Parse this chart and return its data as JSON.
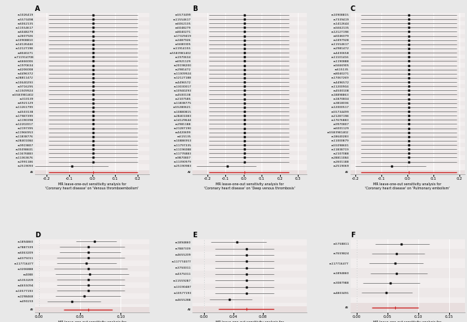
{
  "panels": [
    {
      "label": "A",
      "snps": [
        "rs1026419",
        "rs5573498",
        "rs6062135",
        "rs11554617",
        "rs6048279",
        "rs2607926",
        "rs10908810",
        "rs14126444",
        "rs12127198",
        "rs8040271",
        "rs711914708",
        "rs6666006",
        "rs1970634",
        "rs4206008",
        "rs4496372",
        "rs28811472",
        "rs10640293",
        "rs9716295",
        "rs11509924",
        "rs5583981402",
        "rs313139",
        "rs6921129",
        "rs11261799",
        "rs4503138",
        "rs17987399",
        "rs1190398",
        "rs12202017",
        "rs2197395",
        "rs11966953",
        "rs11838776",
        "rs28401084",
        "rs9919807",
        "rs35098601",
        "rs11676883",
        "rs11363676",
        "rs2991186",
        "rs2519093"
      ],
      "estimates": [
        0.005,
        0.005,
        0.005,
        0.005,
        0.005,
        0.005,
        0.005,
        0.005,
        0.005,
        0.005,
        0.005,
        0.005,
        0.005,
        0.005,
        0.005,
        0.005,
        0.005,
        0.005,
        0.005,
        0.005,
        0.005,
        0.005,
        0.005,
        0.005,
        0.005,
        0.005,
        0.005,
        0.005,
        0.005,
        0.005,
        0.005,
        0.005,
        0.005,
        0.005,
        0.005,
        0.005,
        -0.09
      ],
      "ci_lower": [
        -0.19,
        -0.19,
        -0.19,
        -0.19,
        -0.19,
        -0.19,
        -0.19,
        -0.19,
        -0.19,
        -0.19,
        -0.19,
        -0.19,
        -0.19,
        -0.19,
        -0.19,
        -0.19,
        -0.19,
        -0.19,
        -0.19,
        -0.19,
        -0.19,
        -0.19,
        -0.19,
        -0.19,
        -0.19,
        -0.19,
        -0.19,
        -0.19,
        -0.19,
        -0.19,
        -0.19,
        -0.19,
        -0.19,
        -0.19,
        -0.19,
        -0.19,
        -0.25
      ],
      "ci_upper": [
        0.2,
        0.2,
        0.2,
        0.2,
        0.2,
        0.2,
        0.2,
        0.2,
        0.2,
        0.2,
        0.2,
        0.2,
        0.2,
        0.2,
        0.2,
        0.2,
        0.2,
        0.2,
        0.2,
        0.2,
        0.2,
        0.2,
        0.2,
        0.2,
        0.2,
        0.2,
        0.2,
        0.2,
        0.2,
        0.2,
        0.2,
        0.2,
        0.2,
        0.2,
        0.2,
        0.2,
        0.07
      ],
      "all_estimate": 0.005,
      "all_ci_lower": -0.19,
      "all_ci_upper": 0.2,
      "xlim": [
        -0.25,
        0.25
      ],
      "xticks": [
        -0.2,
        -0.1,
        0.0,
        0.1,
        0.2
      ],
      "xticklabels": [
        "-0.2",
        "-0.1",
        "0.0",
        "0.1",
        "0.2"
      ],
      "xlabel": "MR leave-one-out sensitivity analysis for\n'Coronary heart disease' on 'Venous thromboembolism'"
    },
    {
      "label": "B",
      "snps": [
        "rs5573499",
        "rs11554617",
        "rs6062135",
        "rs6048279",
        "rs8040271",
        "rs17329419",
        "rs2487926",
        "rs5680305",
        "rs11914155",
        "rs5583981402",
        "rs1970634",
        "rs6921129",
        "rs20198200",
        "rs2981472",
        "rs11309924",
        "rs12127188",
        "rs4496572",
        "rs13030017",
        "rs10940293",
        "rs4500138",
        "rs2107585",
        "rs11838775",
        "rs55280621",
        "rs10880815",
        "rs28401083",
        "rs14129644",
        "rs2981188",
        "rs21287190",
        "rs4420699",
        "rs615135",
        "rs10886953",
        "rs11797335",
        "rs11196088",
        "rs11776883",
        "rs9870807",
        "rs11390979",
        "rs25190983"
      ],
      "estimates": [
        0.005,
        0.005,
        0.005,
        0.005,
        0.005,
        0.005,
        0.005,
        0.005,
        0.005,
        0.005,
        0.005,
        0.005,
        0.005,
        0.005,
        0.005,
        0.005,
        0.005,
        0.005,
        0.005,
        0.005,
        0.005,
        0.005,
        0.005,
        0.005,
        0.005,
        0.005,
        0.005,
        0.005,
        0.005,
        0.005,
        0.005,
        0.005,
        0.005,
        0.005,
        0.005,
        0.005,
        -0.09
      ],
      "ci_lower": [
        -0.19,
        -0.19,
        -0.19,
        -0.19,
        -0.19,
        -0.19,
        -0.19,
        -0.19,
        -0.19,
        -0.19,
        -0.19,
        -0.19,
        -0.19,
        -0.19,
        -0.19,
        -0.19,
        -0.19,
        -0.19,
        -0.19,
        -0.19,
        -0.19,
        -0.19,
        -0.19,
        -0.19,
        -0.19,
        -0.19,
        -0.19,
        -0.19,
        -0.19,
        -0.19,
        -0.19,
        -0.19,
        -0.19,
        -0.19,
        -0.19,
        -0.19,
        -0.26
      ],
      "ci_upper": [
        0.25,
        0.25,
        0.25,
        0.25,
        0.25,
        0.25,
        0.25,
        0.25,
        0.25,
        0.25,
        0.25,
        0.25,
        0.25,
        0.25,
        0.25,
        0.25,
        0.25,
        0.25,
        0.25,
        0.25,
        0.25,
        0.25,
        0.25,
        0.25,
        0.25,
        0.25,
        0.25,
        0.25,
        0.25,
        0.25,
        0.25,
        0.25,
        0.25,
        0.25,
        0.25,
        0.25,
        0.07
      ],
      "all_estimate": 0.005,
      "all_ci_lower": -0.19,
      "all_ci_upper": 0.25,
      "xlim": [
        -0.28,
        0.35
      ],
      "xticks": [
        -0.2,
        -0.1,
        0.0,
        0.1,
        0.2,
        0.3
      ],
      "xticklabels": [
        "-0.2",
        "-0.1",
        "0.0",
        "0.1",
        "0.2",
        "0.3"
      ],
      "xlabel": "MR leave-one-out sensitivity analysis for\n'Coronary heart disease' on 'Deep venous thrombosis'"
    },
    {
      "label": "C",
      "snps": [
        "rs10908815",
        "rs7339419",
        "rs1412644",
        "rs5662135",
        "rs12127198",
        "rs6046079",
        "rs2497928",
        "rs11554617",
        "rs2981472",
        "rs4430658",
        "rs11101416",
        "rs1190888",
        "rs5666905",
        "rs615135",
        "rs8040271",
        "rs17067269",
        "rs4496572",
        "rs11200904",
        "rs4500108",
        "rs18898863",
        "rs1870834",
        "rs3818036",
        "rs12000517",
        "rs55734499",
        "rs21287198",
        "rs17676883",
        "rs9970807",
        "rs6001129",
        "rs5583981402",
        "rs18640283",
        "rs11000879",
        "rs55098601",
        "rs11838719",
        "rs2107088",
        "rs28811084",
        "rs2601188",
        "rs2519069"
      ],
      "estimates": [
        0.005,
        0.005,
        0.005,
        0.005,
        0.005,
        0.005,
        0.005,
        0.005,
        0.005,
        0.005,
        0.005,
        0.005,
        0.005,
        0.005,
        0.005,
        0.005,
        0.005,
        0.005,
        0.005,
        0.005,
        0.005,
        0.005,
        0.005,
        0.005,
        0.005,
        0.005,
        0.005,
        0.005,
        0.005,
        0.005,
        0.005,
        0.005,
        0.005,
        0.005,
        0.005,
        0.005,
        -0.06
      ],
      "ci_lower": [
        -0.18,
        -0.18,
        -0.18,
        -0.18,
        -0.18,
        -0.18,
        -0.18,
        -0.18,
        -0.18,
        -0.18,
        -0.18,
        -0.18,
        -0.18,
        -0.18,
        -0.18,
        -0.18,
        -0.18,
        -0.18,
        -0.18,
        -0.18,
        -0.18,
        -0.18,
        -0.18,
        -0.18,
        -0.18,
        -0.18,
        -0.18,
        -0.18,
        -0.18,
        -0.18,
        -0.18,
        -0.18,
        -0.18,
        -0.18,
        -0.18,
        -0.18,
        -0.2
      ],
      "ci_upper": [
        0.19,
        0.19,
        0.19,
        0.19,
        0.19,
        0.19,
        0.19,
        0.19,
        0.19,
        0.19,
        0.19,
        0.19,
        0.19,
        0.19,
        0.19,
        0.19,
        0.19,
        0.19,
        0.19,
        0.19,
        0.19,
        0.19,
        0.19,
        0.19,
        0.19,
        0.19,
        0.19,
        0.19,
        0.19,
        0.19,
        0.19,
        0.19,
        0.19,
        0.19,
        0.19,
        0.19,
        0.07
      ],
      "all_estimate": 0.005,
      "all_ci_lower": -0.18,
      "all_ci_upper": 0.19,
      "xlim": [
        -0.22,
        0.22
      ],
      "xticks": [
        -0.2,
        -0.1,
        0.0,
        0.1,
        0.2
      ],
      "xticklabels": [
        "-0.2",
        "-0.1",
        "0.0",
        "0.1",
        "0.2"
      ],
      "xlabel": "MR leave-one-out sensitivity analysis for\n'Coronary heart disease' on 'Pulmonary embolism'"
    },
    {
      "label": "D",
      "snps": [
        "rs1894860",
        "rs7887339",
        "rs6063209",
        "rs4375011",
        "rs117716477",
        "rs3206888",
        "rs4088",
        "rs5353209",
        "rs4655094",
        "rs10577193",
        "rs2298468",
        "rs490233"
      ],
      "estimates": [
        0.068,
        0.06,
        0.06,
        0.06,
        0.058,
        0.06,
        0.062,
        0.06,
        0.06,
        0.06,
        0.055,
        0.04
      ],
      "ci_lower": [
        0.045,
        0.025,
        0.025,
        0.022,
        0.022,
        0.018,
        0.02,
        0.022,
        0.022,
        0.022,
        0.02,
        0.01
      ],
      "ci_upper": [
        0.095,
        0.105,
        0.1,
        0.105,
        0.095,
        0.108,
        0.11,
        0.105,
        0.105,
        0.105,
        0.1,
        0.075
      ],
      "all_estimate": 0.06,
      "all_ci_lower": 0.03,
      "all_ci_upper": 0.09,
      "xlim": [
        -0.005,
        0.135
      ],
      "xticks": [
        0.0,
        0.05,
        0.1
      ],
      "xticklabels": [
        "0.00",
        "0.05",
        "0.10"
      ],
      "xlabel": "MR leave-one-out sensitivity analysis for\n'Venous thromboembolism' on 'Coronary heart disease'"
    },
    {
      "label": "E",
      "snps": [
        "rs1894860",
        "rs7887339",
        "rs4655209",
        "rs117774077",
        "rs3750011",
        "rs4375011",
        "rs11559287",
        "rs13190487",
        "rs10577193",
        "rs4655288"
      ],
      "estimates": [
        0.045,
        0.058,
        0.058,
        0.058,
        0.058,
        0.058,
        0.058,
        0.058,
        0.058,
        0.035
      ],
      "ci_lower": [
        0.01,
        0.015,
        0.015,
        0.015,
        0.015,
        0.015,
        0.015,
        0.015,
        0.015,
        0.008
      ],
      "ci_upper": [
        0.085,
        0.095,
        0.095,
        0.095,
        0.095,
        0.095,
        0.095,
        0.095,
        0.095,
        0.065
      ],
      "all_estimate": 0.058,
      "all_ci_lower": 0.02,
      "all_ci_upper": 0.095,
      "xlim": [
        -0.015,
        0.14
      ],
      "xticks": [
        0.0,
        0.04,
        0.08
      ],
      "xticklabels": [
        "0.00",
        "0.04",
        "0.08"
      ],
      "xlabel": "MR leave-one-out sensitivity analysis for\n'Deep venous thrombosis' on 'Coronary heart disease'"
    },
    {
      "label": "F",
      "snps": [
        "rs5758811",
        "rs7659824",
        "rs117716477",
        "rs1894860",
        "rs3087988",
        "rs4803491"
      ],
      "estimates": [
        0.072,
        0.065,
        0.062,
        0.065,
        0.055,
        0.048
      ],
      "ci_lower": [
        0.03,
        0.025,
        0.02,
        0.022,
        0.01,
        0.008
      ],
      "ci_upper": [
        0.118,
        0.11,
        0.108,
        0.115,
        0.102,
        0.09
      ],
      "all_estimate": 0.062,
      "all_ci_lower": 0.025,
      "all_ci_upper": 0.1,
      "xlim": [
        -0.01,
        0.175
      ],
      "xticks": [
        0.0,
        0.05,
        0.1,
        0.15
      ],
      "xticklabels": [
        "0.00",
        "0.05",
        "0.10",
        "0.15"
      ],
      "xlabel": "MR leave-one-out sensitivity analysis for\n'Pulmonary embolism' on 'Coronary heart disease'"
    }
  ],
  "bg_color": "#e8e8e8",
  "snp_row_colors": [
    "#f2eeee",
    "#ede8e8"
  ],
  "all_row_color": "#e8dede",
  "marker_color": "#1a1a1a",
  "line_color": "#888888",
  "red_line_color": "#cc2222",
  "dashed_line_color": "#bbbbbb",
  "dashed_line_style": "dotted"
}
